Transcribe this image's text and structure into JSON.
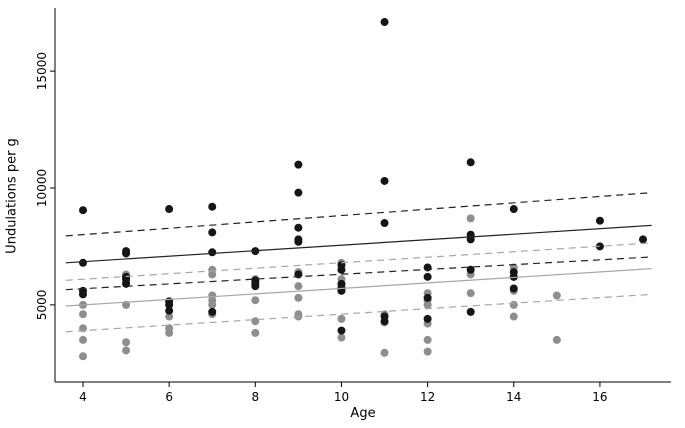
{
  "figure": {
    "xlabel": "Age",
    "ylabel": "Undulations per g"
  },
  "chart_data": {
    "type": "scatter",
    "title": "",
    "xlabel": "Age",
    "ylabel": "Undulations per g",
    "xlim": [
      3.35,
      17.65
    ],
    "ylim": [
      1700,
      17700
    ],
    "xticks": [
      4,
      6,
      8,
      10,
      12,
      14,
      16
    ],
    "yticks": [
      5000,
      10000,
      15000
    ],
    "grid": false,
    "legend": "none",
    "series": [
      {
        "name": "group-dark",
        "color": "#151515",
        "marker": "circle",
        "points": [
          [
            4,
            9050
          ],
          [
            4,
            6800
          ],
          [
            4,
            5600
          ],
          [
            4,
            5450
          ],
          [
            5,
            7300
          ],
          [
            5,
            7200
          ],
          [
            5,
            6200
          ],
          [
            5,
            6100
          ],
          [
            5,
            5900
          ],
          [
            6,
            9100
          ],
          [
            6,
            5150
          ],
          [
            6,
            5000
          ],
          [
            6,
            4750
          ],
          [
            7,
            9200
          ],
          [
            7,
            8100
          ],
          [
            7,
            7250
          ],
          [
            7,
            4700
          ],
          [
            8,
            7300
          ],
          [
            8,
            6050
          ],
          [
            8,
            5900
          ],
          [
            8,
            5800
          ],
          [
            9,
            11000
          ],
          [
            9,
            9800
          ],
          [
            9,
            8300
          ],
          [
            9,
            7800
          ],
          [
            9,
            7700
          ],
          [
            9,
            6300
          ],
          [
            10,
            6700
          ],
          [
            10,
            6500
          ],
          [
            10,
            5900
          ],
          [
            10,
            5700
          ],
          [
            10,
            5600
          ],
          [
            10,
            3900
          ],
          [
            11,
            17100
          ],
          [
            11,
            10300
          ],
          [
            11,
            8500
          ],
          [
            11,
            4500
          ],
          [
            11,
            4300
          ],
          [
            12,
            6600
          ],
          [
            12,
            6200
          ],
          [
            12,
            5300
          ],
          [
            12,
            4400
          ],
          [
            13,
            11100
          ],
          [
            13,
            8000
          ],
          [
            13,
            7800
          ],
          [
            13,
            6500
          ],
          [
            13,
            4700
          ],
          [
            14,
            9100
          ],
          [
            14,
            6400
          ],
          [
            14,
            6200
          ],
          [
            14,
            5700
          ],
          [
            16,
            8600
          ],
          [
            16,
            7500
          ],
          [
            17,
            7800
          ]
        ]
      },
      {
        "name": "group-light",
        "color": "#8e8e8e",
        "marker": "circle",
        "points": [
          [
            4,
            5000
          ],
          [
            4,
            4600
          ],
          [
            4,
            4000
          ],
          [
            4,
            3500
          ],
          [
            4,
            2800
          ],
          [
            5,
            6300
          ],
          [
            5,
            6100
          ],
          [
            5,
            6000
          ],
          [
            5,
            5000
          ],
          [
            5,
            3400
          ],
          [
            5,
            3050
          ],
          [
            6,
            4500
          ],
          [
            6,
            4000
          ],
          [
            6,
            3800
          ],
          [
            7,
            6500
          ],
          [
            7,
            6300
          ],
          [
            7,
            5400
          ],
          [
            7,
            5200
          ],
          [
            7,
            5000
          ],
          [
            7,
            4600
          ],
          [
            8,
            6100
          ],
          [
            8,
            6000
          ],
          [
            8,
            5200
          ],
          [
            8,
            4300
          ],
          [
            8,
            3800
          ],
          [
            9,
            6400
          ],
          [
            9,
            5800
          ],
          [
            9,
            5300
          ],
          [
            9,
            4600
          ],
          [
            9,
            4500
          ],
          [
            10,
            6800
          ],
          [
            10,
            6100
          ],
          [
            10,
            5800
          ],
          [
            10,
            5700
          ],
          [
            10,
            4400
          ],
          [
            10,
            3600
          ],
          [
            11,
            4600
          ],
          [
            11,
            4250
          ],
          [
            11,
            2950
          ],
          [
            12,
            5500
          ],
          [
            12,
            5200
          ],
          [
            12,
            5000
          ],
          [
            12,
            4200
          ],
          [
            12,
            3500
          ],
          [
            12,
            3000
          ],
          [
            13,
            8700
          ],
          [
            13,
            8000
          ],
          [
            13,
            6300
          ],
          [
            13,
            5500
          ],
          [
            14,
            6600
          ],
          [
            14,
            6200
          ],
          [
            14,
            5600
          ],
          [
            14,
            5000
          ],
          [
            14,
            4500
          ],
          [
            15,
            5400
          ],
          [
            15,
            3500
          ]
        ]
      }
    ],
    "fit_lines": [
      {
        "name": "dark-fit-solid",
        "color": "#222222",
        "style": "solid",
        "x1": 3.6,
        "y1": 6800,
        "x2": 17.2,
        "y2": 8400
      },
      {
        "name": "dark-upper-dashed",
        "color": "#222222",
        "style": "dashed",
        "x1": 3.6,
        "y1": 7950,
        "x2": 17.2,
        "y2": 9800
      },
      {
        "name": "dark-lower-dashed",
        "color": "#222222",
        "style": "dashed",
        "x1": 3.6,
        "y1": 5650,
        "x2": 17.2,
        "y2": 7050
      },
      {
        "name": "light-fit-solid",
        "color": "#a6a6a6",
        "style": "solid",
        "x1": 3.6,
        "y1": 4950,
        "x2": 17.2,
        "y2": 6550
      },
      {
        "name": "light-upper-dashed",
        "color": "#a6a6a6",
        "style": "dashed",
        "x1": 3.6,
        "y1": 6050,
        "x2": 17.2,
        "y2": 7650
      },
      {
        "name": "light-lower-dashed",
        "color": "#a6a6a6",
        "style": "dashed",
        "x1": 3.6,
        "y1": 3850,
        "x2": 17.2,
        "y2": 5450
      }
    ]
  }
}
